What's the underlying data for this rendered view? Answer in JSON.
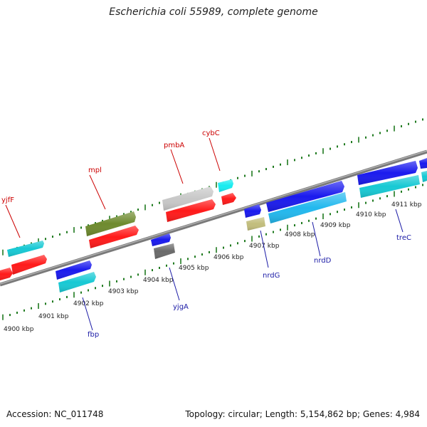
{
  "title": "Escherichia coli 55989, complete genome",
  "footer": {
    "accession": "Accession: NC_011748",
    "topology": "Topology: circular; Length: 5,154,862 bp; Genes: 4,984"
  },
  "colors": {
    "backbone": "#7a7a7a",
    "tick": "#1f7a1f",
    "label_forward": "#cc0000",
    "label_reverse": "#1a1aa6",
    "red": "#ff1a1a",
    "cyan": "#17c9d4",
    "blue": "#1a1aee",
    "skyblue": "#22b8ee",
    "olive": "#6e8a2e",
    "lightgray": "#c8c8c8",
    "darkgray": "#6a6a6a",
    "khaki": "#c2bd7c"
  },
  "scale": {
    "ticks": [
      {
        "label": "4900 kbp"
      },
      {
        "label": "4901 kbp"
      },
      {
        "label": "4902 kbp"
      },
      {
        "label": "4903 kbp"
      },
      {
        "label": "4904 kbp"
      },
      {
        "label": "4905 kbp"
      },
      {
        "label": "4906 kbp"
      },
      {
        "label": "4907 kbp"
      },
      {
        "label": "4908 kbp"
      },
      {
        "label": "4909 kbp"
      },
      {
        "label": "4910 kbp"
      },
      {
        "label": "4911 kbp"
      }
    ]
  },
  "genes": [
    {
      "name": "yjfF",
      "strand": "forward",
      "color": "cyan"
    },
    {
      "name": "mpl",
      "strand": "forward",
      "color": "olive"
    },
    {
      "name": "pmbA",
      "strand": "forward",
      "color": "lightgray"
    },
    {
      "name": "cybC",
      "strand": "forward",
      "color": "cyan"
    },
    {
      "name": "fbp",
      "strand": "reverse",
      "color": "blue"
    },
    {
      "name": "yjgA",
      "strand": "reverse",
      "color": "darkgray"
    },
    {
      "name": "nrdG",
      "strand": "reverse",
      "color": "khaki"
    },
    {
      "name": "nrdD",
      "strand": "reverse",
      "color": "skyblue"
    },
    {
      "name": "treC",
      "strand": "reverse",
      "color": "blue"
    }
  ]
}
